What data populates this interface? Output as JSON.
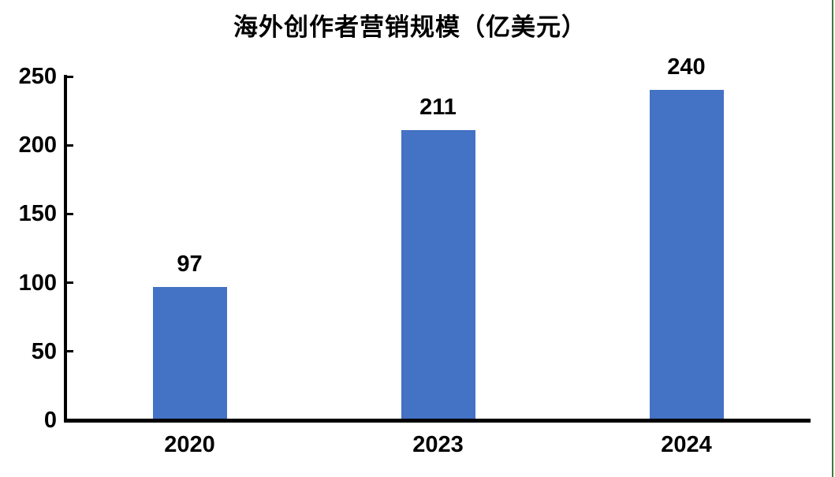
{
  "chart_data": {
    "type": "bar",
    "title": "海外创作者营销规模（亿美元）",
    "categories": [
      "2020",
      "2023",
      "2024"
    ],
    "values": [
      97,
      211,
      240
    ],
    "data_labels": [
      "97",
      "211",
      "240"
    ],
    "xlabel": "",
    "ylabel": "",
    "ylim": [
      0,
      250
    ],
    "yticks": [
      0,
      50,
      100,
      150,
      200,
      250
    ],
    "grid": false,
    "legend": false,
    "colors": {
      "bar": "#4472C4",
      "axis": "#000000",
      "text": "#000000",
      "background": "#FFFFFF",
      "right_edge_border": "#3C7D3C"
    }
  }
}
